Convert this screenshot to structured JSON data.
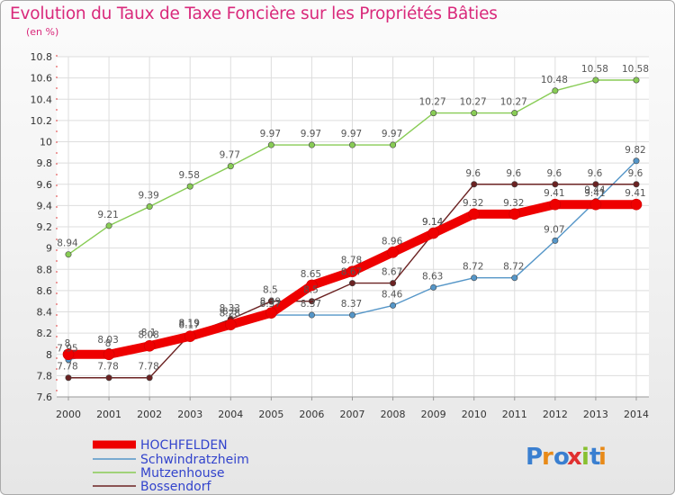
{
  "colors": {
    "HOCHFELDEN": "#ee0000",
    "Schwindratzheim": "#5596c8",
    "Mutzenhouse": "#88cc55",
    "Bossendorf": "#6b2222"
  },
  "header": {
    "title": "Evolution du Taux de Taxe Foncière sur les Propriétés Bâties",
    "subtitle": "(en %)"
  },
  "logo": {
    "text": "Proxiti"
  },
  "chart_data": {
    "type": "line",
    "title": "Evolution du Taux de Taxe Foncière sur les Propriétés Bâties",
    "ylabel": "(en %)",
    "xlabel": "",
    "x": [
      "2000",
      "2001",
      "2002",
      "2003",
      "2004",
      "2005",
      "2006",
      "2007",
      "2008",
      "2009",
      "2010",
      "2011",
      "2012",
      "2013",
      "2014"
    ],
    "ylim": [
      7.6,
      10.8
    ],
    "yticks": [
      "7.6",
      "7.8",
      "8",
      "8.2",
      "8.4",
      "8.6",
      "8.8",
      "9",
      "9.2",
      "9.4",
      "9.6",
      "9.8",
      "10",
      "10.2",
      "10.4",
      "10.6",
      "10.8"
    ],
    "legend_position": "bottom-left",
    "grid": true,
    "series": [
      {
        "name": "HOCHFELDEN",
        "values": [
          8,
          8,
          8.08,
          8.17,
          8.28,
          8.39,
          8.65,
          8.78,
          8.96,
          9.14,
          9.32,
          9.32,
          9.41,
          9.41,
          9.41
        ],
        "labels": [
          "8",
          "8",
          "8.08",
          "8.17",
          "8.28",
          "8.39",
          "8.65",
          "8.78",
          "8.96",
          "9.14",
          "9.32",
          "9.32",
          "9.41",
          "9.41",
          "9.41"
        ]
      },
      {
        "name": "Schwindratzheim",
        "values": [
          7.95,
          8.03,
          8.1,
          8.19,
          8.3,
          8.37,
          8.37,
          8.37,
          8.46,
          8.63,
          8.72,
          8.72,
          9.07,
          9.44,
          9.82
        ],
        "labels": [
          "7.95",
          "8.03",
          "8.1",
          "8.19",
          "8.3",
          "8.37",
          "8.37",
          "8.37",
          "8.46",
          "8.63",
          "8.72",
          "8.72",
          "9.07",
          "9.44",
          "9.82"
        ]
      },
      {
        "name": "Mutzenhouse",
        "values": [
          8.94,
          9.21,
          9.39,
          9.58,
          9.77,
          9.97,
          9.97,
          9.97,
          9.97,
          10.27,
          10.27,
          10.27,
          10.48,
          10.58,
          10.58
        ],
        "labels": [
          "8.94",
          "9.21",
          "9.39",
          "9.58",
          "9.77",
          "9.97",
          "9.97",
          "9.97",
          "9.97",
          "10.27",
          "10.27",
          "10.27",
          "10.48",
          "10.58",
          "10.58"
        ]
      },
      {
        "name": "Bossendorf",
        "values": [
          7.78,
          7.78,
          7.78,
          8.19,
          8.33,
          8.5,
          8.5,
          8.67,
          8.67,
          9.14,
          9.6,
          9.6,
          9.6,
          9.6,
          9.6
        ],
        "labels": [
          "7.78",
          "7.78",
          "7.78",
          "8.19",
          "8.33",
          "8.5",
          "8.5",
          "8.67",
          "8.67",
          "9.14",
          "9.6",
          "9.6",
          "9.6",
          "9.6",
          "9.6"
        ]
      }
    ]
  }
}
